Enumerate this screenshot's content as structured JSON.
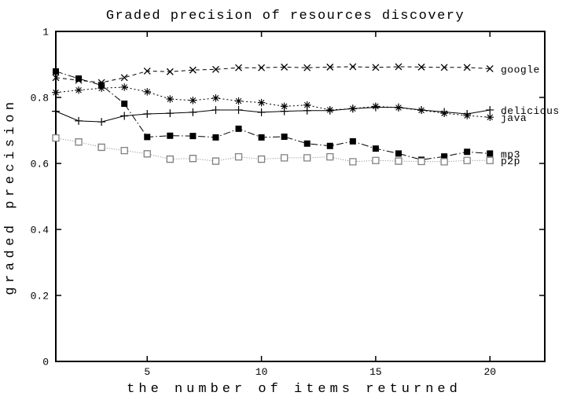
{
  "chart_data": {
    "type": "line",
    "title": "Graded precision of resources discovery",
    "xlabel": "the number of items returned",
    "ylabel": "graded precision",
    "xlim": [
      1,
      22.4
    ],
    "ylim": [
      0,
      1
    ],
    "xticks": [
      5,
      10,
      15,
      20
    ],
    "yticks": [
      0,
      0.2,
      0.4,
      0.6,
      0.8,
      1
    ],
    "ytick_labels": [
      "0",
      "0.2",
      "0.4",
      "0.6",
      "0.8",
      "1"
    ],
    "grid": false,
    "legend_position": "inline-right-of-last-point",
    "x": [
      1,
      2,
      3,
      4,
      5,
      6,
      7,
      8,
      9,
      10,
      11,
      12,
      13,
      14,
      15,
      16,
      17,
      18,
      19,
      20
    ],
    "series": [
      {
        "name": "google",
        "marker": "x",
        "line_style": "dashed",
        "color": "#000000",
        "values": [
          0.86,
          0.852,
          0.845,
          0.86,
          0.88,
          0.878,
          0.883,
          0.885,
          0.89,
          0.89,
          0.892,
          0.89,
          0.892,
          0.893,
          0.891,
          0.893,
          0.892,
          0.891,
          0.891,
          0.887
        ]
      },
      {
        "name": "delicious",
        "marker": "plus",
        "line_style": "solid",
        "color": "#000000",
        "values": [
          0.758,
          0.729,
          0.726,
          0.744,
          0.75,
          0.752,
          0.755,
          0.762,
          0.762,
          0.755,
          0.758,
          0.76,
          0.76,
          0.766,
          0.77,
          0.77,
          0.762,
          0.756,
          0.75,
          0.762
        ]
      },
      {
        "name": "java",
        "marker": "asterisk",
        "line_style": "dotted",
        "color": "#000000",
        "values": [
          0.815,
          0.822,
          0.828,
          0.831,
          0.817,
          0.795,
          0.791,
          0.798,
          0.789,
          0.784,
          0.773,
          0.777,
          0.762,
          0.766,
          0.773,
          0.769,
          0.761,
          0.752,
          0.745,
          0.74
        ]
      },
      {
        "name": "mp3",
        "marker": "square-filled",
        "line_style": "dash-dot",
        "color": "#000000",
        "values": [
          0.879,
          0.857,
          0.837,
          0.781,
          0.68,
          0.684,
          0.683,
          0.679,
          0.705,
          0.679,
          0.681,
          0.66,
          0.653,
          0.667,
          0.645,
          0.63,
          0.611,
          0.621,
          0.635,
          0.63
        ]
      },
      {
        "name": "p2p",
        "marker": "square-open",
        "line_style": "fine-dotted",
        "color": "#808080",
        "values": [
          0.677,
          0.665,
          0.649,
          0.639,
          0.629,
          0.613,
          0.615,
          0.607,
          0.62,
          0.613,
          0.617,
          0.617,
          0.62,
          0.605,
          0.609,
          0.607,
          0.606,
          0.605,
          0.609,
          0.609
        ]
      }
    ]
  }
}
